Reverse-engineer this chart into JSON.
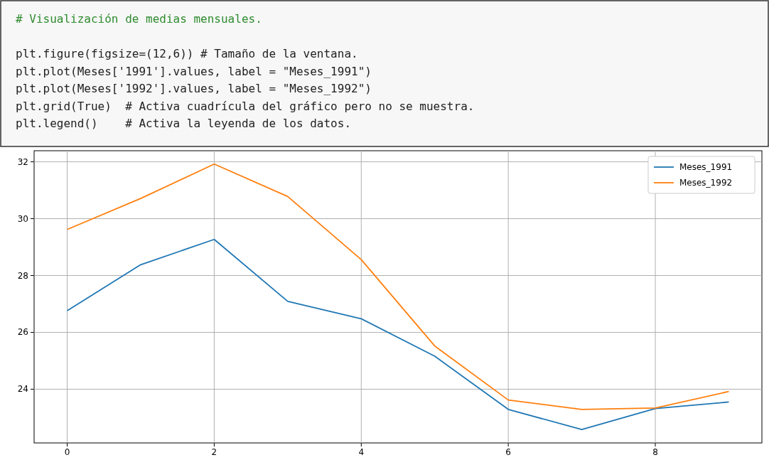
{
  "chart_data": {
    "type": "line",
    "annotations": [
      "# Visualización de medias mensuales.",
      "plt.figure(figsize=(12,6)) # Tamaño de la ventana.",
      "plt.plot(Meses['1991'].values, label = \"Meses_1991\")",
      "plt.plot(Meses['1992'].values, label = \"Meses_1992\")",
      "plt.grid(True)  # Activa cuadrícula del gráfico pero no se muestra.",
      "plt.legend()    # Activa la leyenda de los datos."
    ],
    "x": [
      0,
      1,
      2,
      3,
      4,
      5,
      6,
      7,
      8,
      9
    ],
    "series": [
      {
        "name": "Meses_1991",
        "color": "#1f77b4",
        "values": [
          26.76,
          28.38,
          29.27,
          27.09,
          26.48,
          25.16,
          23.29,
          22.58,
          23.32,
          23.55
        ]
      },
      {
        "name": "Meses_1992",
        "color": "#ff7f0e",
        "values": [
          29.62,
          30.71,
          31.92,
          30.78,
          28.56,
          25.52,
          23.62,
          23.29,
          23.34,
          23.92
        ]
      }
    ],
    "xlim": [
      -0.45,
      9.45
    ],
    "xticks": [
      0,
      2,
      4,
      6,
      8
    ],
    "ylim": [
      22.11,
      32.39
    ],
    "yticks": [
      24,
      26,
      28,
      30,
      32
    ],
    "grid": true,
    "legend": "top right",
    "marker": "none",
    "line_style": "solid"
  }
}
